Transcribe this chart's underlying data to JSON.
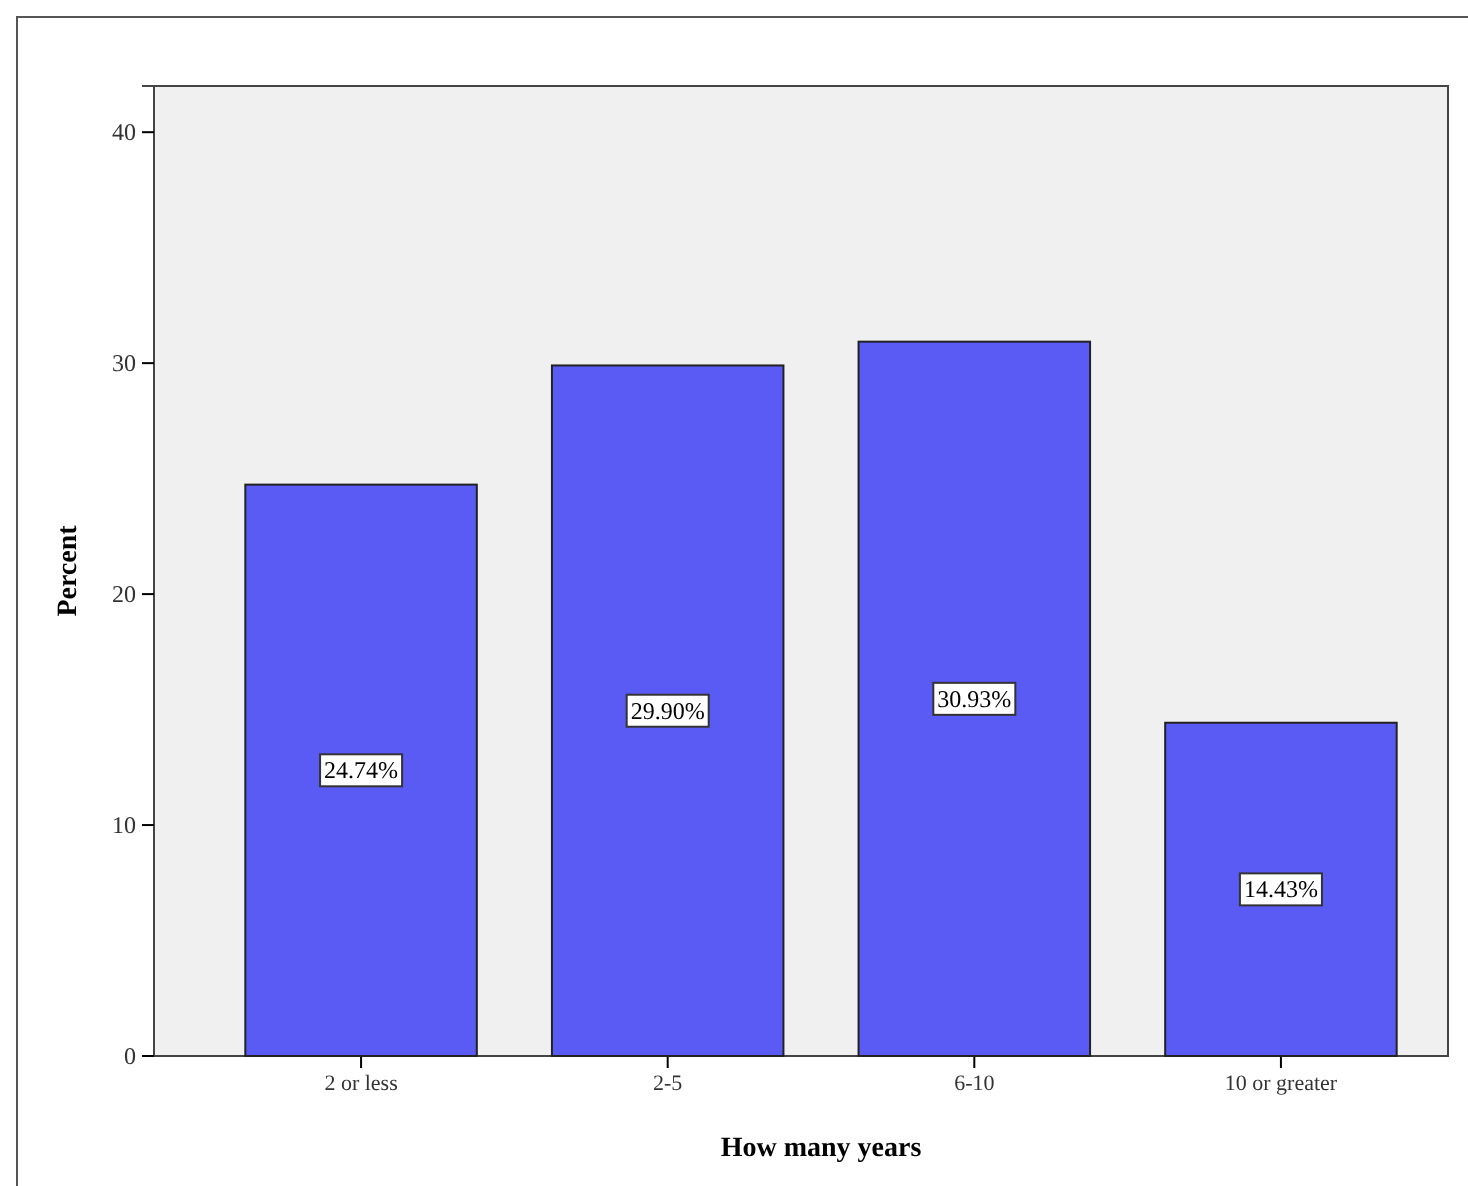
{
  "chart_data": {
    "type": "bar",
    "xlabel": "How many years",
    "ylabel": "Percent",
    "categories": [
      "2 or less",
      "2-5",
      "6-10",
      "10 or greater"
    ],
    "values": [
      24.74,
      29.9,
      30.93,
      14.43
    ],
    "value_labels": [
      "24.74%",
      "29.90%",
      "30.93%",
      "14.43%"
    ],
    "color": "#5a5af5",
    "ylim": [
      0,
      42
    ],
    "yticks": [
      0,
      10,
      20,
      30,
      40
    ],
    "grid": false,
    "legend": false
  }
}
